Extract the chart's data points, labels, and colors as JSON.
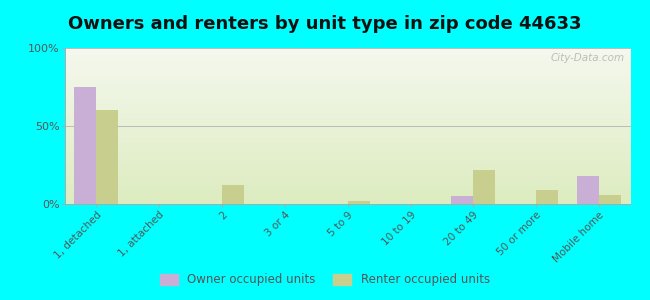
{
  "title": "Owners and renters by unit type in zip code 44633",
  "categories": [
    "1, detached",
    "1, attached",
    "2",
    "3 or 4",
    "5 to 9",
    "10 to 19",
    "20 to 49",
    "50 or more",
    "Mobile home"
  ],
  "owner_values": [
    75,
    0,
    0,
    0,
    0,
    0,
    5,
    0,
    18
  ],
  "renter_values": [
    60,
    0,
    12,
    0,
    2,
    0,
    22,
    9,
    6
  ],
  "owner_color": "#c9aed6",
  "renter_color": "#c8cf8e",
  "background_color": "#00ffff",
  "title_fontsize": 13,
  "ylabel_ticks": [
    "0%",
    "50%",
    "100%"
  ],
  "ylabel_values": [
    0,
    50,
    100
  ],
  "ylim": [
    0,
    100
  ],
  "watermark": "City-Data.com",
  "legend_owner": "Owner occupied units",
  "legend_renter": "Renter occupied units"
}
